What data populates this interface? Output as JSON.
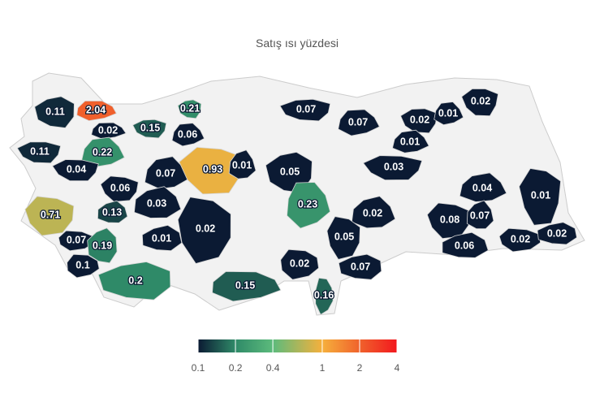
{
  "chart_data": {
    "type": "choropleth",
    "title": "Satış ısı yüzdesi",
    "values": [
      0.11,
      2.04,
      0.21,
      0.02,
      0.15,
      0.06,
      0.11,
      0.22,
      0.04,
      0.07,
      0.93,
      0.01,
      0.06,
      0.03,
      0.71,
      0.13,
      0.02,
      0.01,
      0.07,
      0.19,
      0.1,
      0.2,
      0.15,
      0.05,
      0.23,
      0.07,
      0.07,
      0.02,
      0.01,
      0.02,
      0.01,
      0.03,
      0.04,
      0.01,
      0.02,
      0.08,
      0.07,
      0.05,
      0.06,
      0.02,
      0.02,
      0.02,
      0.07,
      0.16
    ],
    "colorbar": {
      "scale": "log",
      "lim": [
        0.1,
        4
      ],
      "ticks": [
        0.1,
        0.2,
        0.4,
        1,
        2,
        4
      ],
      "colors": [
        "#0b1a33",
        "#2f8a68",
        "#5cbb7c",
        "#f6b03c",
        "#f0622c",
        "#f2181e"
      ]
    }
  }
}
